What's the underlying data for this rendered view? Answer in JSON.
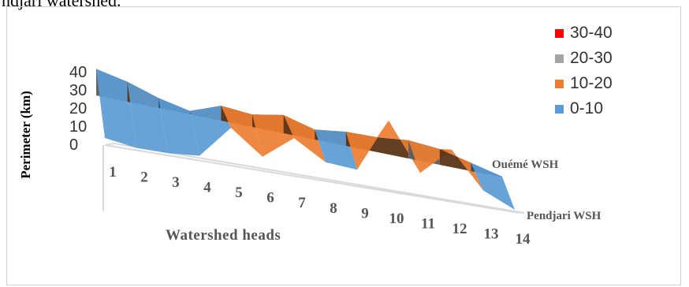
{
  "caption": "ndjari watershed.",
  "chart_data": {
    "type": "surface",
    "title": "",
    "xlabel": "Watershed heads",
    "ylabel": "Perimeter (km)",
    "zlim": [
      0,
      40
    ],
    "z_ticks": [
      "0",
      "10",
      "20",
      "30",
      "40"
    ],
    "categories": [
      "1",
      "2",
      "3",
      "4",
      "5",
      "6",
      "7",
      "8",
      "9",
      "10",
      "11",
      "12",
      "13",
      "14"
    ],
    "series": [
      {
        "name": "Pendjari WSH",
        "values": [
          3,
          1,
          1,
          2,
          16,
          6,
          16,
          8,
          7,
          30,
          10,
          22,
          7,
          1
        ]
      },
      {
        "name": "Ouémé WSH",
        "values": [
          32,
          24,
          12,
          4,
          18,
          15,
          22,
          12,
          17,
          18,
          22,
          19,
          10,
          1
        ]
      }
    ],
    "depth_labels": [
      "Ouémé WSH",
      "Pendjari WSH"
    ],
    "legend": {
      "position": "top-right",
      "entries": [
        {
          "label": "30-40",
          "color": "#ff0000"
        },
        {
          "label": "20-30",
          "color": "#a5a5a5"
        },
        {
          "label": "10-20",
          "color": "#ed7d31"
        },
        {
          "label": "0-10",
          "color": "#5b9bd5"
        }
      ]
    },
    "band_colors": {
      "front": [
        "#2e4a60",
        "#5a3416",
        "#5c5c5c",
        "#aa1010"
      ],
      "back": [
        "#5b9bd5",
        "#ed7d31",
        "#b5b5b5",
        "#ff0000"
      ]
    }
  }
}
